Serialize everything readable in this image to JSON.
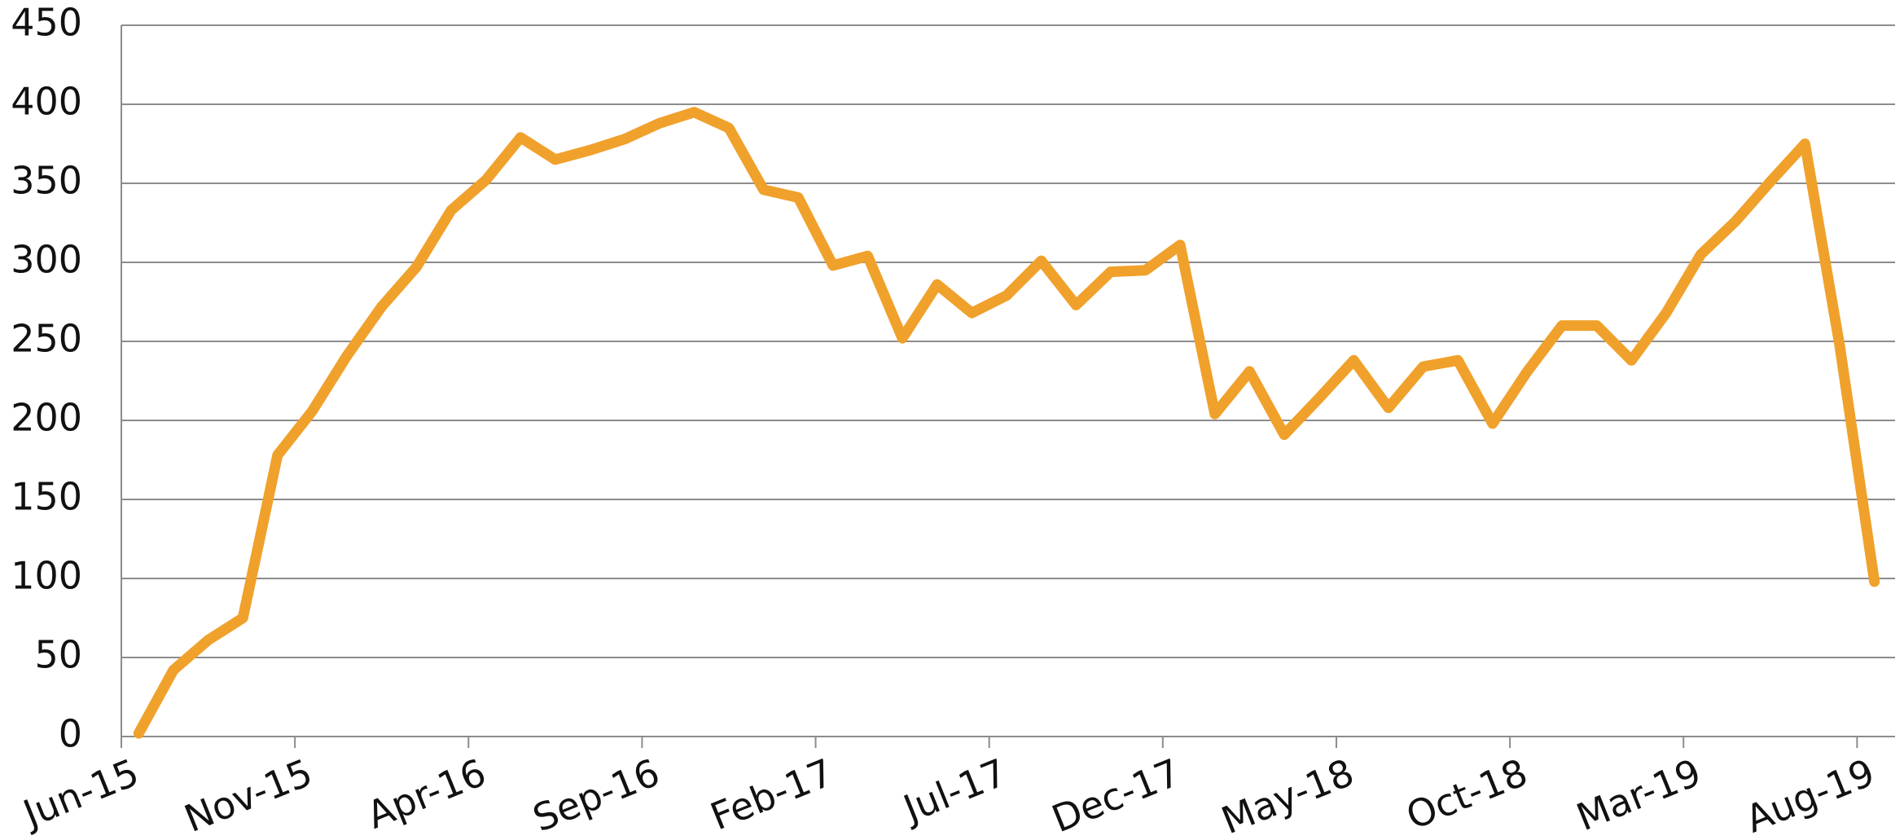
{
  "chart_data": {
    "type": "line",
    "categories": [
      "Jun-15",
      null,
      null,
      null,
      null,
      "Nov-15",
      null,
      null,
      null,
      null,
      "Apr-16",
      null,
      null,
      null,
      null,
      "Sep-16",
      null,
      null,
      null,
      null,
      "Feb-17",
      null,
      null,
      null,
      null,
      "Jul-17",
      null,
      null,
      null,
      null,
      "Dec-17",
      null,
      null,
      null,
      null,
      "May-18",
      null,
      null,
      null,
      null,
      "Oct-18",
      null,
      null,
      null,
      null,
      "Mar-19",
      null,
      null,
      null,
      null,
      "Aug-19"
    ],
    "series": [
      {
        "color": "#f0a12b",
        "values": [
          2,
          42,
          61,
          75,
          178,
          206,
          241,
          272,
          297,
          333,
          352,
          379,
          365,
          371,
          378,
          388,
          395,
          385,
          346,
          341,
          298,
          304,
          252,
          286,
          268,
          279,
          301,
          273,
          294,
          295,
          311,
          204,
          231,
          191,
          214,
          238,
          208,
          234,
          238,
          198,
          231,
          260,
          260,
          238,
          268,
          305,
          326,
          351,
          375,
          247,
          98
        ]
      }
    ],
    "ylim": [
      0,
      450
    ],
    "yticks": [
      0,
      50,
      100,
      150,
      200,
      250,
      300,
      350,
      400,
      450
    ],
    "grid": true
  }
}
